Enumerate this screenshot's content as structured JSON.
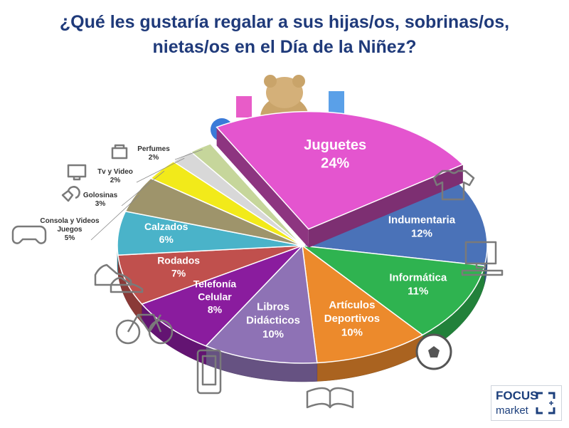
{
  "title": {
    "line1": "¿Qué les gustaría regalar a sus hijas/os, sobrinas/os,",
    "line2": "nietas/os en el Día de la Niñez?"
  },
  "logo": {
    "line1": "FOCUS",
    "line2": "market"
  },
  "chart_data": {
    "type": "pie",
    "title": "¿Qué les gustaría regalar a sus hijas/os, sobrinas/os, nietas/os en el Día de la Niñez?",
    "unit": "%",
    "slices": [
      {
        "label": "Juguetes",
        "value": 24,
        "value_label": "24%",
        "color": "#e455cf"
      },
      {
        "label": "Indumentaria",
        "value": 12,
        "value_label": "12%",
        "color": "#4a72b8"
      },
      {
        "label": "Informática",
        "value": 11,
        "value_label": "11%",
        "color": "#2fb350"
      },
      {
        "label": "Artículos Deportivos",
        "value": 10,
        "value_label": "10%",
        "color": "#ec8a2c"
      },
      {
        "label": "Libros Didácticos",
        "value": 10,
        "value_label": "10%",
        "color": "#8e72b5"
      },
      {
        "label": "Telefonía Celular",
        "value": 8,
        "value_label": "8%",
        "color": "#8a1c9e"
      },
      {
        "label": "Rodados",
        "value": 7,
        "value_label": "7%",
        "color": "#c0504d"
      },
      {
        "label": "Calzados",
        "value": 6,
        "value_label": "6%",
        "color": "#4ab3c9"
      },
      {
        "label": "Consola y Videos Juegos",
        "value": 5,
        "value_label": "5%",
        "color": "#9e946b"
      },
      {
        "label": "Golosinas",
        "value": 3,
        "value_label": "3%",
        "color": "#f2ea1a"
      },
      {
        "label": "Tv y Video",
        "value": 2,
        "value_label": "2%",
        "color": "#d8d8d8"
      },
      {
        "label": "Perfumes",
        "value": 2,
        "value_label": "2%",
        "color": "#c6d69b"
      }
    ]
  }
}
